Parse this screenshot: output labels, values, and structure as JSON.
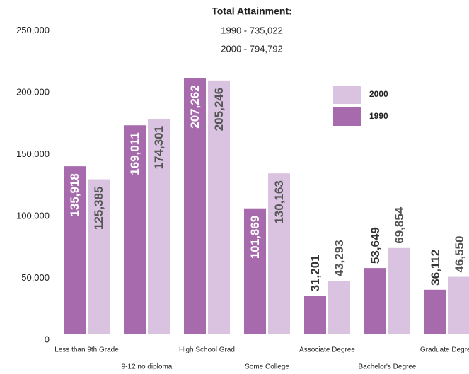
{
  "chart_data": {
    "type": "bar",
    "title": "Total Attainment:",
    "subtitle": [
      "1990 - 735,022",
      "2000 - 794,792"
    ],
    "categories": [
      "Less than 9th Grade",
      "9-12 no diploma",
      "High School Grad",
      "Some College",
      "Associate Degree",
      "Bachelor's Degree",
      "Graduate Degree"
    ],
    "series": [
      {
        "name": "1990",
        "color": "#a66aad",
        "values": [
          135918,
          169011,
          207262,
          101869,
          31201,
          53649,
          36112
        ],
        "value_labels": [
          "135,918",
          "169,011",
          "207,262",
          "101,869",
          "31,201",
          "53,649",
          "36,112"
        ]
      },
      {
        "name": "2000",
        "color": "#d9c3e0",
        "values": [
          125385,
          174301,
          205246,
          130163,
          43293,
          69854,
          46550
        ],
        "value_labels": [
          "125,385",
          "174,301",
          "205,246",
          "130,163",
          "43,293",
          "69,854",
          "46,550"
        ]
      }
    ],
    "ylim": [
      0,
      250000
    ],
    "yticks": [
      0,
      {
        "value": 50000,
        "label": "50,000"
      },
      {
        "value": 100000,
        "label": "100,000"
      },
      {
        "value": 150000,
        "label": "150,000"
      },
      {
        "value": 200000,
        "label": "200,000"
      },
      {
        "value": 250000,
        "label": "250,000"
      }
    ],
    "grid": false,
    "legend": "upper right"
  }
}
